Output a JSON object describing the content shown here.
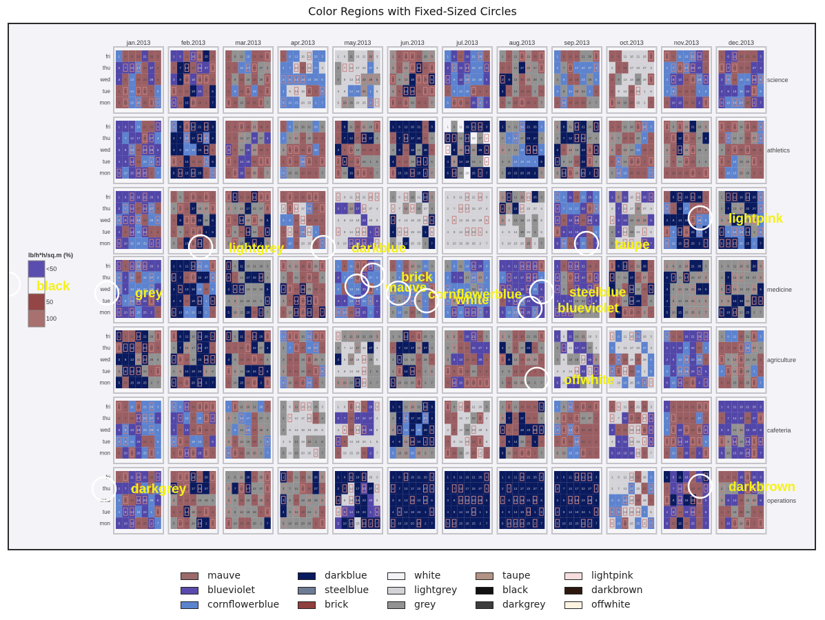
{
  "chart_data": {
    "type": "heatmap",
    "title": "Color Regions with Fixed-Sized Circles",
    "subtitle": "",
    "xlabel": "",
    "ylabel": "",
    "months": [
      "jan.2013",
      "feb.2013",
      "mar.2013",
      "apr.2013",
      "may.2013",
      "jun.2013",
      "jul.2013",
      "aug.2013",
      "sep.2013",
      "oct.2013",
      "nov.2013",
      "dec.2013"
    ],
    "categories": [
      "science",
      "athletics",
      "",
      "medicine",
      "agriculture",
      "cafeteria",
      "operations"
    ],
    "weekdays": [
      "fri",
      "thu",
      "wed",
      "tue",
      "mon"
    ],
    "inner_legend": {
      "title": "lb/h*h/sq.m  (%)",
      "levels": [
        "<50",
        "",
        "50",
        "100"
      ],
      "colors": [
        "#5a4db0",
        "#f4f3f8",
        "#934645",
        "#a8706e"
      ]
    },
    "panel_themes": [
      [
        [
          0,
          1,
          2
        ],
        [
          0,
          1,
          3
        ],
        [
          0,
          4,
          2
        ],
        [
          2,
          5,
          0
        ],
        [
          5,
          4,
          2
        ],
        [
          0,
          4,
          3
        ],
        [
          2,
          1,
          0
        ],
        [
          0,
          4,
          3
        ],
        [
          0,
          4,
          2
        ],
        [
          5,
          0,
          4
        ],
        [
          0,
          1,
          2
        ],
        [
          1,
          2,
          0
        ]
      ],
      [
        [
          1,
          2,
          0
        ],
        [
          3,
          0,
          2
        ],
        [
          0,
          4,
          1
        ],
        [
          0,
          4,
          2
        ],
        [
          0,
          4,
          3
        ],
        [
          3,
          0,
          4
        ],
        [
          3,
          4,
          6
        ],
        [
          3,
          4,
          2
        ],
        [
          3,
          4,
          0
        ],
        [
          0,
          4,
          2
        ],
        [
          0,
          4,
          3
        ],
        [
          0,
          4,
          2
        ]
      ],
      [
        [
          2,
          1,
          0
        ],
        [
          0,
          3,
          4
        ],
        [
          0,
          4,
          3
        ],
        [
          0,
          2,
          5
        ],
        [
          5,
          1,
          4
        ],
        [
          5,
          4,
          3
        ],
        [
          5,
          5,
          5
        ],
        [
          5,
          3,
          4
        ],
        [
          1,
          2,
          0
        ],
        [
          5,
          4,
          1
        ],
        [
          3,
          0,
          2
        ],
        [
          3,
          4,
          2
        ]
      ],
      [
        [
          1,
          2,
          0
        ],
        [
          3,
          0,
          2
        ],
        [
          4,
          3,
          0
        ],
        [
          0,
          4,
          3
        ],
        [
          2,
          1,
          0
        ],
        [
          2,
          4,
          0
        ],
        [
          2,
          1,
          4
        ],
        [
          1,
          2,
          0
        ],
        [
          1,
          0,
          4
        ],
        [
          0,
          4,
          3
        ],
        [
          4,
          3,
          4
        ],
        [
          4,
          3,
          4
        ]
      ],
      [
        [
          3,
          0,
          4
        ],
        [
          3,
          4,
          0
        ],
        [
          0,
          4,
          3
        ],
        [
          0,
          2,
          4
        ],
        [
          5,
          4,
          3
        ],
        [
          4,
          3,
          0
        ],
        [
          0,
          1,
          4
        ],
        [
          0,
          4,
          3
        ],
        [
          5,
          1,
          4
        ],
        [
          5,
          2,
          0
        ],
        [
          1,
          2,
          0
        ],
        [
          0,
          4,
          2
        ]
      ],
      [
        [
          2,
          1,
          0
        ],
        [
          0,
          1,
          2
        ],
        [
          4,
          2,
          0
        ],
        [
          5,
          4,
          0
        ],
        [
          5,
          1,
          0
        ],
        [
          3,
          4,
          2
        ],
        [
          5,
          0,
          4
        ],
        [
          0,
          4,
          3
        ],
        [
          0,
          4,
          2
        ],
        [
          5,
          1,
          0
        ],
        [
          0,
          1,
          2
        ],
        [
          1,
          0,
          4
        ]
      ],
      [
        [
          1,
          2,
          0
        ],
        [
          0,
          3,
          4
        ],
        [
          4,
          0,
          3
        ],
        [
          4,
          0,
          3
        ],
        [
          3,
          5,
          1
        ],
        [
          3,
          3,
          3
        ],
        [
          3,
          3,
          3
        ],
        [
          3,
          3,
          3
        ],
        [
          3,
          3,
          3
        ],
        [
          5,
          2,
          0
        ],
        [
          0,
          1,
          3
        ],
        [
          0,
          4,
          1
        ]
      ]
    ],
    "region_labels": [
      {
        "text": "black",
        "circle": true
      },
      {
        "text": "grey",
        "circle": true
      },
      {
        "text": "lightgrey",
        "circle": true
      },
      {
        "text": "darkblue",
        "circle": true
      },
      {
        "text": "brick",
        "circle": true
      },
      {
        "text": "mauve",
        "circle": true
      },
      {
        "text": "cornflowerblue",
        "circle": true
      },
      {
        "text": "white",
        "circle": true
      },
      {
        "text": "steelblue",
        "circle": true
      },
      {
        "text": "blueviolet",
        "circle": true
      },
      {
        "text": "taupe",
        "circle": true
      },
      {
        "text": "lightpink",
        "circle": true
      },
      {
        "text": "offwhite",
        "circle": true
      },
      {
        "text": "darkgrey",
        "circle": true
      },
      {
        "text": "darkbrown",
        "circle": true
      }
    ],
    "legend": [
      {
        "label": "mauve",
        "color": "#9b6a6c"
      },
      {
        "label": "blueviolet",
        "color": "#5a4aad"
      },
      {
        "label": "cornflowerblue",
        "color": "#5b84cf"
      },
      {
        "label": "darkblue",
        "color": "#0a1a5e"
      },
      {
        "label": "steelblue",
        "color": "#6e7b94"
      },
      {
        "label": "brick",
        "color": "#8f3f3d"
      },
      {
        "label": "white",
        "color": "#f3f2f6"
      },
      {
        "label": "lightgrey",
        "color": "#d3d2d6"
      },
      {
        "label": "grey",
        "color": "#929292"
      },
      {
        "label": "taupe",
        "color": "#b39386"
      },
      {
        "label": "black",
        "color": "#111111"
      },
      {
        "label": "darkgrey",
        "color": "#3c3c3c"
      },
      {
        "label": "lightpink",
        "color": "#f6dede"
      },
      {
        "label": "darkbrown",
        "color": "#2e180e"
      },
      {
        "label": "offwhite",
        "color": "#fdf3e0"
      }
    ],
    "annotation_color": "#f5f21a",
    "grid": false,
    "legend_position": "bottom"
  }
}
